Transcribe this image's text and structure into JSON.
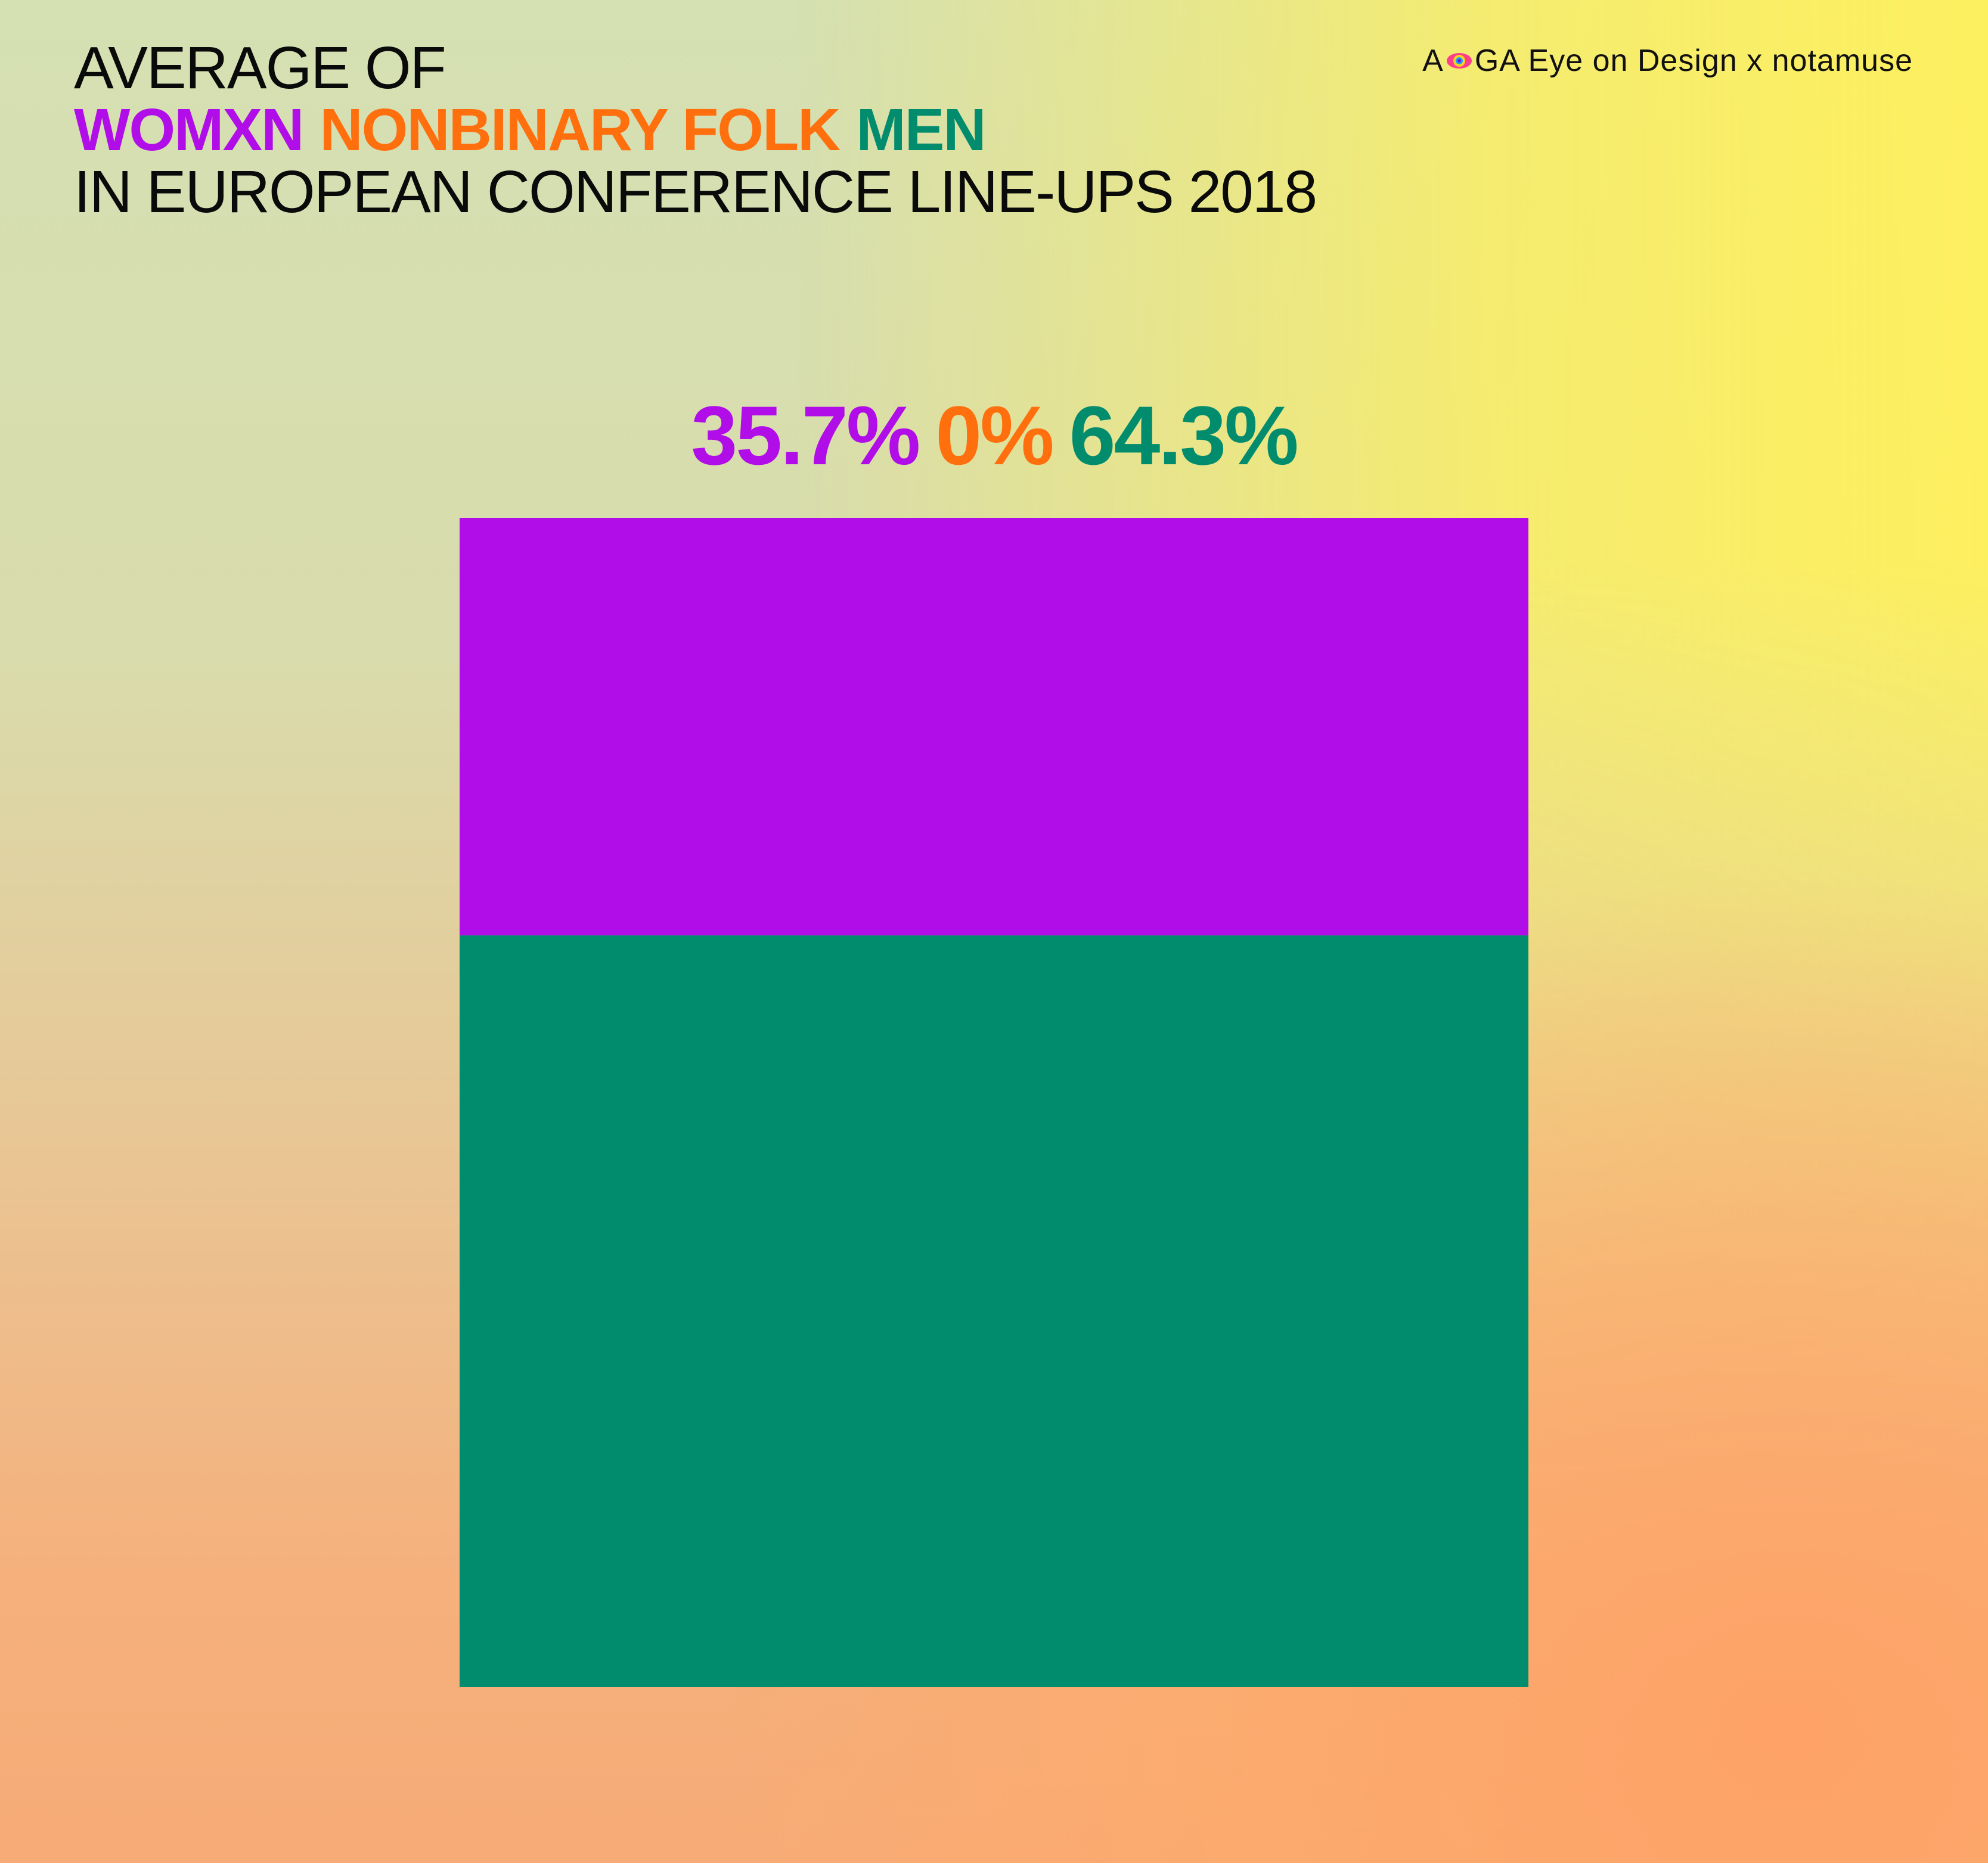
{
  "header": {
    "line1": "AVERAGE OF",
    "line3": "IN EUROPEAN CONFERENCE LINE-UPS 2018"
  },
  "brand": {
    "prefix": "A",
    "suffix": "GA Eye on Design x notamuse",
    "eye_icon": "eye-icon"
  },
  "colors": {
    "womxn": "#b00de8",
    "nonbinary": "#ff6f0e",
    "men": "#028c6e"
  },
  "chart_data": {
    "type": "bar",
    "stacked": true,
    "orientation": "vertical",
    "categories": [
      "WOMXN",
      "NONBINARY FOLK",
      "MEN"
    ],
    "values": [
      35.7,
      0,
      64.3
    ],
    "value_labels": [
      "35.7%",
      "0%",
      "64.3%"
    ],
    "unit": "%",
    "title": "AVERAGE OF WOMXN NONBINARY FOLK MEN IN EUROPEAN CONFERENCE LINE-UPS 2018",
    "ylim": [
      0,
      100
    ],
    "grid": false,
    "legend": "top-left"
  }
}
